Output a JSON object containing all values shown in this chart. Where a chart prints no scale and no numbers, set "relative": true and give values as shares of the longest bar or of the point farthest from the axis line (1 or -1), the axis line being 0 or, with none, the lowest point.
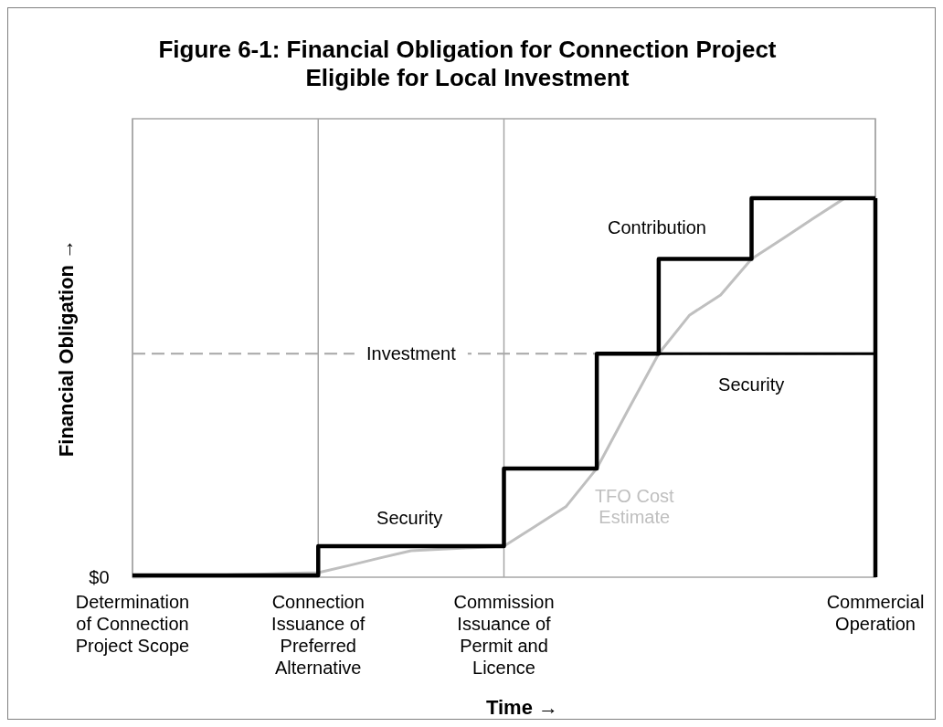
{
  "chart_data": {
    "type": "line",
    "title": "Figure 6-1: Financial Obligation for Connection Project Eligible for Local Investment",
    "xlabel": "Time →",
    "ylabel": "Financial Obligation →",
    "relative": true,
    "categories": [
      "Determination of Connection Project Scope",
      null,
      null,
      null,
      null,
      null,
      "Connection Issuance of Preferred Alternative",
      null,
      null,
      null,
      null,
      null,
      "Commission Issuance of Permit and Licence",
      null,
      null,
      null,
      null,
      null,
      null,
      null,
      null,
      null,
      null,
      null,
      "Commercial Operation"
    ],
    "series": [
      {
        "name": "TFO Cost Estimate",
        "color": "#bfbfbf",
        "values": [
          0,
          0.002,
          0.004,
          0.006,
          0.008,
          0.01,
          0.012,
          0.031,
          0.051,
          0.07,
          0.074,
          0.078,
          0.082,
          0.134,
          0.186,
          0.287,
          0.44,
          0.59,
          0.692,
          0.745,
          0.84,
          0.893,
          0.947,
          1,
          1
        ]
      },
      {
        "color": "#000000",
        "values": [
          null,
          null,
          null,
          null,
          null,
          null,
          null,
          null,
          null,
          null,
          null,
          null,
          null,
          null,
          null,
          null,
          null,
          0.59,
          0.59,
          0.59,
          0.59,
          0.59,
          0.59,
          0.59,
          0.59
        ]
      },
      {
        "type": "step",
        "color": "#000000",
        "values": [
          0.005,
          0.005,
          0.005,
          0.005,
          0.005,
          0.005,
          0.005,
          0.082,
          0.082,
          0.082,
          0.082,
          0.082,
          0.082,
          0.287,
          0.287,
          0.287,
          0.59,
          0.59,
          0.84,
          0.84,
          0.84,
          1,
          1,
          1,
          1
        ]
      }
    ],
    "ref_lines": [
      {
        "axis": "y",
        "value": 0.59,
        "label": "Investment",
        "color": "#a6a6a6",
        "line_style": "dashed"
      }
    ],
    "annotations": [
      "$0",
      "Contribution",
      "Security",
      "Security"
    ],
    "grid": "x",
    "legend": false
  }
}
